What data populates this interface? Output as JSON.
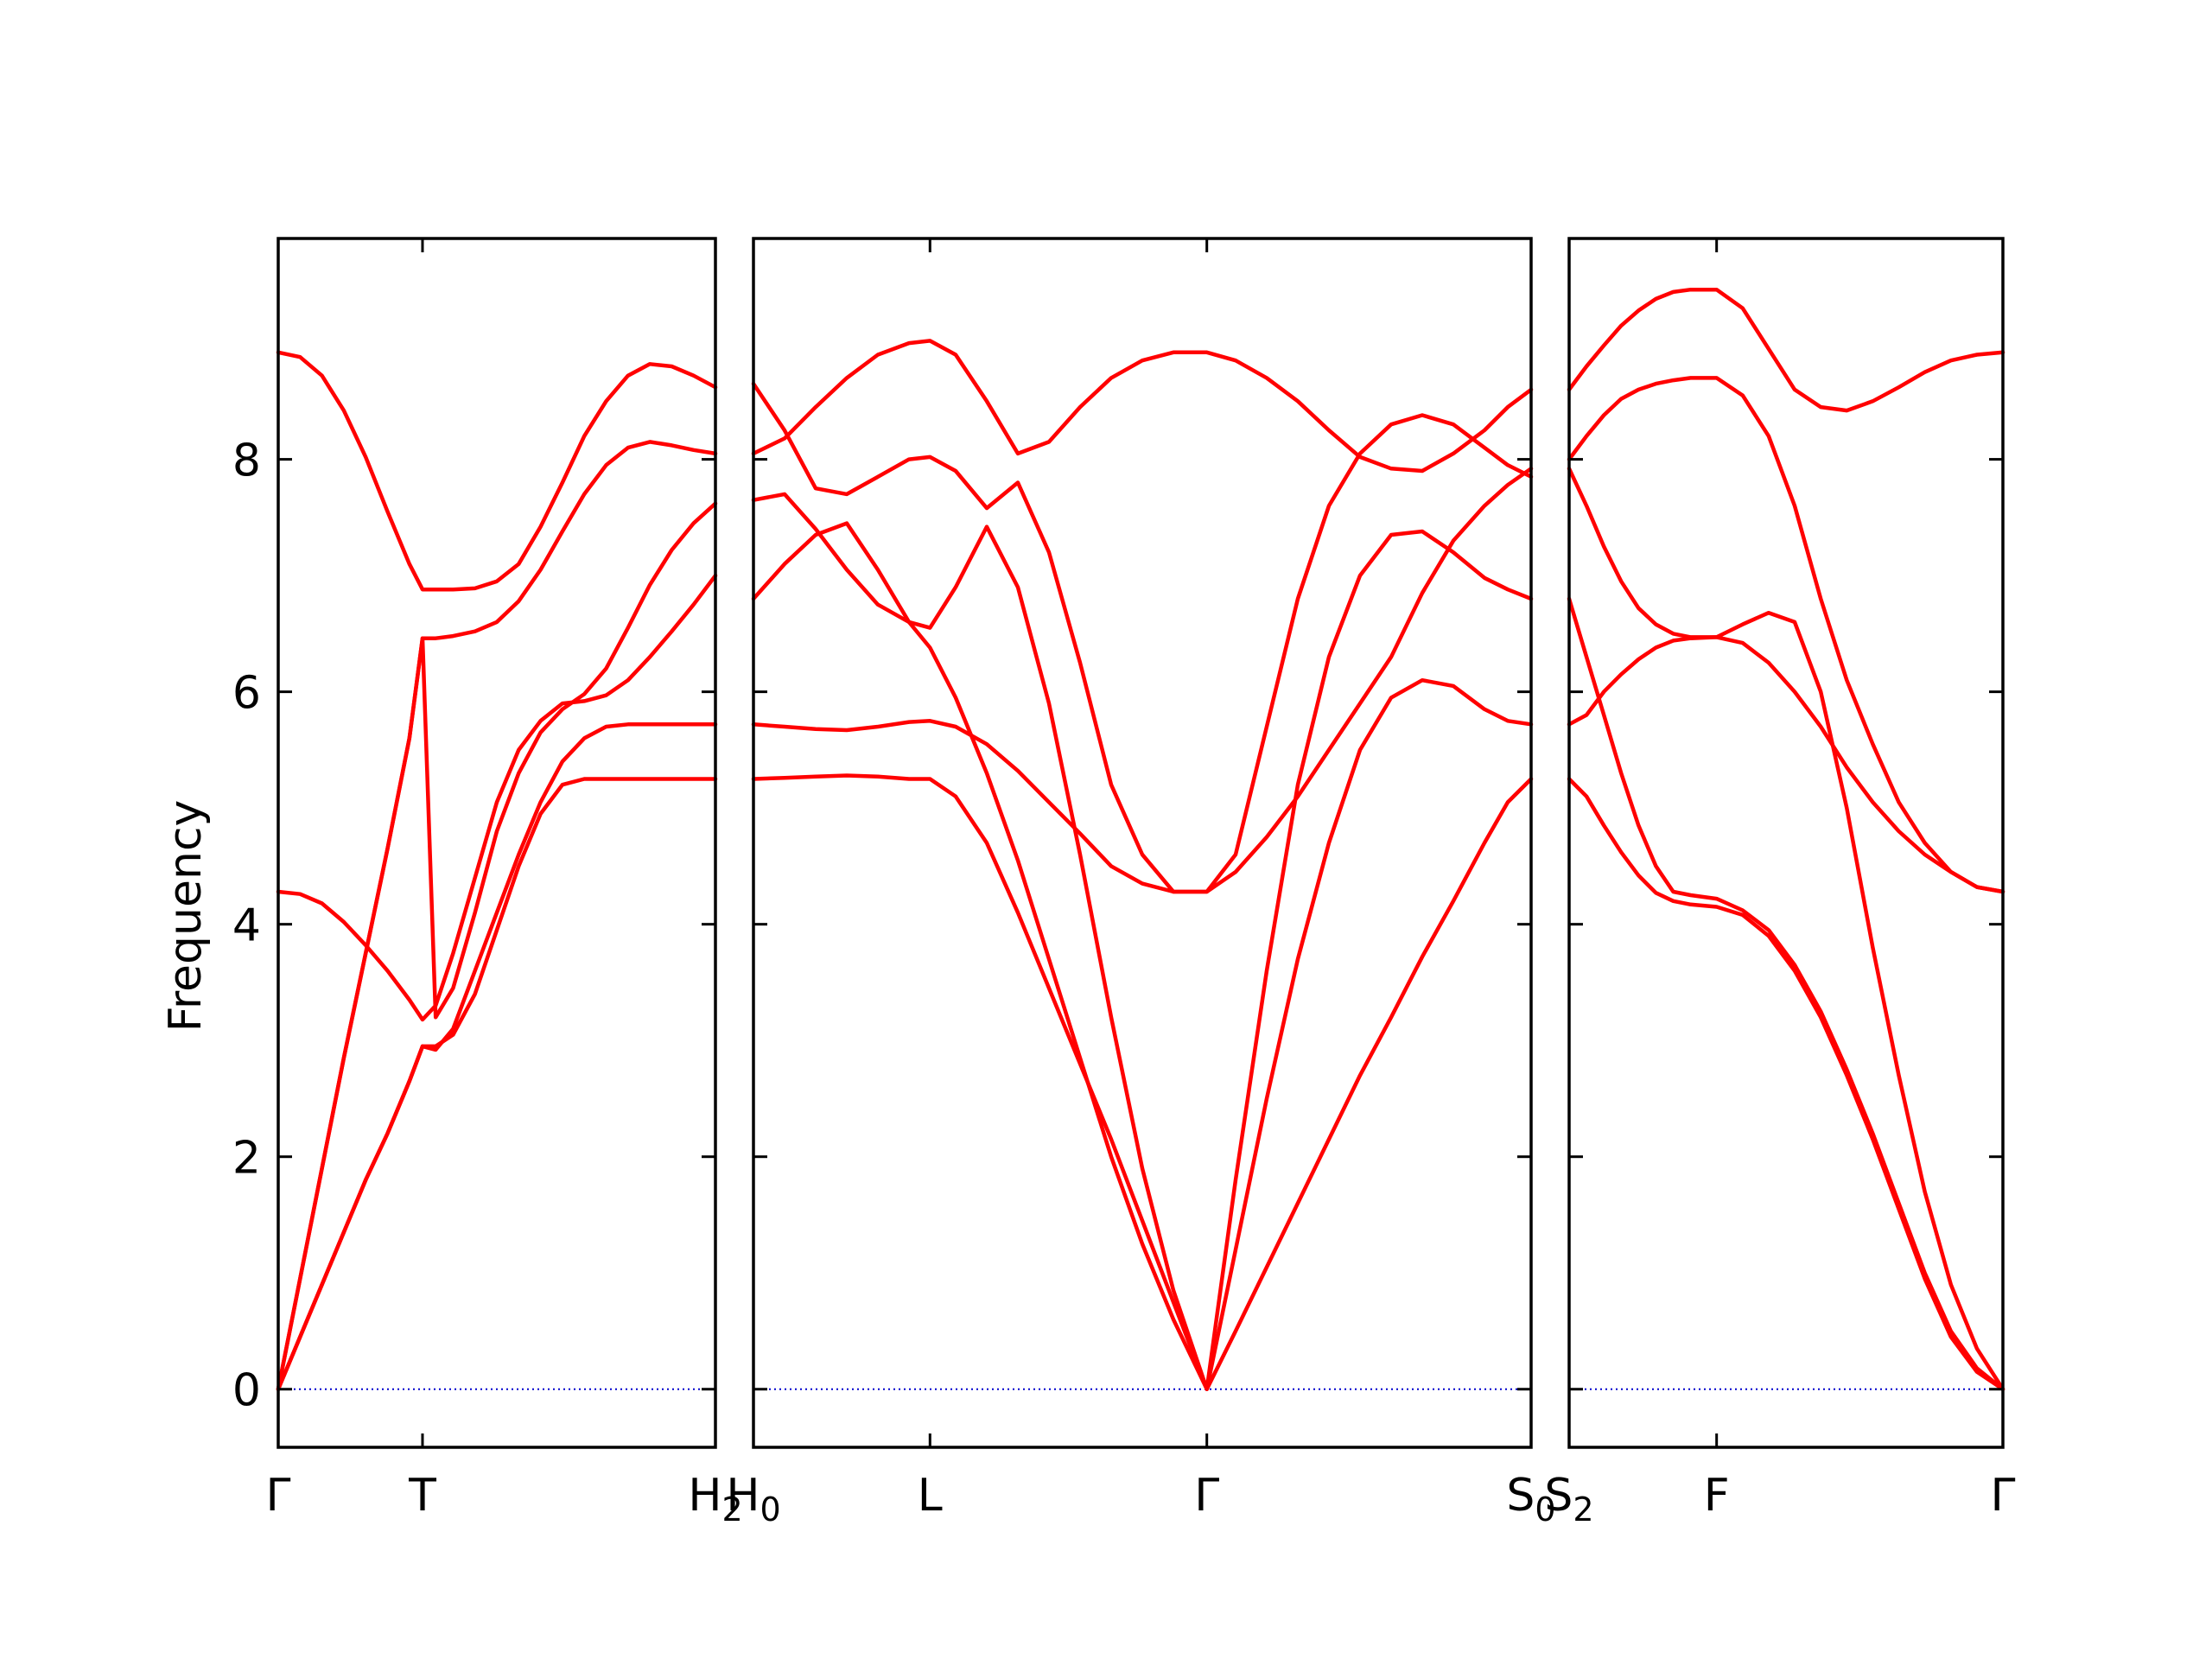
{
  "chart_data": {
    "type": "line",
    "title": "",
    "ylabel": "Frequency",
    "ylim": [
      -0.5,
      9.9
    ],
    "yticks": [
      0,
      2,
      4,
      6,
      8
    ],
    "colors": {
      "bands": "#ff0000",
      "zero_line": "#0000cc",
      "axes": "#000000"
    },
    "grid": false,
    "panels": [
      {
        "xlim": [
          0,
          1
        ],
        "ticks": [
          {
            "x": 0,
            "label": "Γ",
            "sub": ""
          },
          {
            "x": 0.33,
            "label": "T",
            "sub": ""
          },
          {
            "x": 1,
            "label": "H",
            "sub": "2"
          }
        ],
        "series": [
          {
            "x": [
              0,
              0.05,
              0.1,
              0.15,
              0.2,
              0.25,
              0.3,
              0.33,
              0.36,
              0.4,
              0.45,
              0.5,
              0.55,
              0.6,
              0.65,
              0.7,
              0.75,
              0.8,
              0.85,
              0.9,
              0.95,
              1
            ],
            "y": [
              0,
              0.45,
              0.9,
              1.35,
              1.8,
              2.2,
              2.65,
              2.95,
              2.95,
              3.05,
              3.4,
              3.95,
              4.5,
              4.95,
              5.2,
              5.25,
              5.25,
              5.25,
              5.25,
              5.25,
              5.25,
              5.25
            ]
          },
          {
            "x": [
              0,
              0.05,
              0.1,
              0.15,
              0.2,
              0.25,
              0.3,
              0.33,
              0.36,
              0.4,
              0.45,
              0.5,
              0.55,
              0.6,
              0.65,
              0.7,
              0.75,
              0.8,
              0.85,
              0.9,
              0.95,
              1
            ],
            "y": [
              0,
              0.45,
              0.9,
              1.35,
              1.8,
              2.2,
              2.65,
              2.95,
              2.92,
              3.1,
              3.6,
              4.1,
              4.6,
              5.05,
              5.4,
              5.6,
              5.7,
              5.72,
              5.72,
              5.72,
              5.72,
              5.72
            ]
          },
          {
            "x": [
              0,
              0.05,
              0.1,
              0.15,
              0.2,
              0.25,
              0.3,
              0.33,
              0.36,
              0.4,
              0.45,
              0.5,
              0.55,
              0.6,
              0.65,
              0.7,
              0.75,
              0.8,
              0.85,
              0.9,
              0.95,
              1
            ],
            "y": [
              4.28,
              4.26,
              4.18,
              4.02,
              3.82,
              3.6,
              3.35,
              3.18,
              3.3,
              3.75,
              4.4,
              5.05,
              5.5,
              5.75,
              5.9,
              5.92,
              5.97,
              6.1,
              6.3,
              6.52,
              6.75,
              7.0
            ]
          },
          {
            "x": [
              0,
              0.05,
              0.1,
              0.15,
              0.2,
              0.25,
              0.3,
              0.33,
              0.36,
              0.4,
              0.45,
              0.5,
              0.55,
              0.6,
              0.65,
              0.7,
              0.75,
              0.8,
              0.85,
              0.9,
              0.95,
              1
            ],
            "y": [
              0,
              0.95,
              1.9,
              2.85,
              3.75,
              4.65,
              5.6,
              6.46,
              6.46,
              6.48,
              6.52,
              6.6,
              6.78,
              7.05,
              7.38,
              7.7,
              7.95,
              8.1,
              8.15,
              8.12,
              8.08,
              8.05
            ]
          },
          {
            "x": [
              0,
              0.05,
              0.1,
              0.15,
              0.2,
              0.25,
              0.3,
              0.33,
              0.36,
              0.4,
              0.45,
              0.5,
              0.55,
              0.6,
              0.65,
              0.7,
              0.75,
              0.8,
              0.85,
              0.9,
              0.95,
              1
            ],
            "y": [
              8.92,
              8.88,
              8.72,
              8.42,
              8.02,
              7.55,
              7.1,
              6.88,
              6.88,
              6.88,
              6.89,
              6.95,
              7.1,
              7.42,
              7.8,
              8.2,
              8.5,
              8.72,
              8.82,
              8.8,
              8.72,
              8.62
            ]
          },
          {
            "x": [
              0,
              0.05,
              0.1,
              0.15,
              0.2,
              0.25,
              0.3,
              0.33,
              0.36,
              0.4,
              0.45,
              0.5,
              0.55,
              0.6,
              0.65,
              0.7,
              0.75,
              0.8,
              0.85,
              0.9,
              0.95,
              1
            ],
            "y": [
              0,
              0.95,
              1.9,
              2.85,
              3.75,
              4.65,
              5.6,
              6.46,
              3.2,
              3.45,
              4.1,
              4.8,
              5.3,
              5.65,
              5.85,
              5.98,
              6.2,
              6.55,
              6.92,
              7.22,
              7.45,
              7.62
            ]
          }
        ]
      },
      {
        "xlim": [
          0,
          1
        ],
        "ticks": [
          {
            "x": 0,
            "label": "H",
            "sub": "0"
          },
          {
            "x": 0.227,
            "label": "L",
            "sub": ""
          },
          {
            "x": 0.583,
            "label": "Γ",
            "sub": ""
          },
          {
            "x": 1,
            "label": "S",
            "sub": "0"
          }
        ],
        "series": [
          {
            "x": [
              0,
              0.04,
              0.08,
              0.12,
              0.16,
              0.2,
              0.227,
              0.26,
              0.3,
              0.34,
              0.38,
              0.42,
              0.46,
              0.5,
              0.54,
              0.583,
              0.62,
              0.66,
              0.7,
              0.74,
              0.78,
              0.82,
              0.86,
              0.9,
              0.94,
              0.97,
              1
            ],
            "y": [
              5.25,
              5.26,
              5.27,
              5.28,
              5.27,
              5.25,
              5.25,
              5.1,
              4.7,
              4.1,
              3.45,
              2.8,
              2.15,
              1.45,
              0.75,
              0,
              0.5,
              1.05,
              1.6,
              2.15,
              2.7,
              3.2,
              3.72,
              4.2,
              4.7,
              5.05,
              5.25
            ]
          },
          {
            "x": [
              0,
              0.04,
              0.08,
              0.12,
              0.16,
              0.2,
              0.227,
              0.26,
              0.3,
              0.34,
              0.38,
              0.42,
              0.46,
              0.5,
              0.54,
              0.583,
              0.62,
              0.66,
              0.7,
              0.74,
              0.78,
              0.82,
              0.86,
              0.9,
              0.94,
              0.97,
              1
            ],
            "y": [
              5.72,
              5.7,
              5.68,
              5.67,
              5.7,
              5.74,
              5.75,
              5.7,
              5.55,
              5.32,
              5.05,
              4.78,
              4.5,
              4.35,
              4.28,
              4.28,
              4.45,
              4.75,
              5.1,
              5.5,
              5.9,
              6.3,
              6.85,
              7.3,
              7.6,
              7.78,
              7.92
            ]
          },
          {
            "x": [
              0,
              0.04,
              0.08,
              0.12,
              0.16,
              0.2,
              0.227,
              0.26,
              0.3,
              0.34,
              0.38,
              0.42,
              0.46,
              0.5,
              0.54,
              0.583,
              0.62,
              0.66,
              0.7,
              0.74,
              0.78,
              0.82,
              0.86,
              0.9,
              0.94,
              0.97,
              1
            ],
            "y": [
              6.8,
              7.1,
              7.35,
              7.45,
              7.05,
              6.6,
              6.38,
              5.95,
              5.3,
              4.55,
              3.7,
              2.85,
              2.0,
              1.25,
              0.6,
              0,
              1.2,
              2.5,
              3.7,
              4.7,
              5.5,
              5.95,
              6.1,
              6.05,
              5.85,
              5.75,
              5.72
            ]
          },
          {
            "x": [
              0,
              0.04,
              0.08,
              0.12,
              0.16,
              0.2,
              0.227,
              0.26,
              0.3,
              0.34,
              0.38,
              0.42,
              0.46,
              0.5,
              0.54,
              0.583,
              0.62,
              0.66,
              0.7,
              0.74,
              0.78,
              0.82,
              0.86,
              0.9,
              0.94,
              0.97,
              1
            ],
            "y": [
              7.65,
              7.7,
              7.4,
              7.05,
              6.75,
              6.6,
              6.55,
              6.9,
              7.42,
              6.9,
              5.9,
              4.6,
              3.2,
              1.9,
              0.85,
              0,
              1.8,
              3.6,
              5.2,
              6.3,
              7.0,
              7.35,
              7.38,
              7.2,
              6.98,
              6.88,
              6.8
            ]
          },
          {
            "x": [
              0,
              0.04,
              0.08,
              0.12,
              0.16,
              0.2,
              0.227,
              0.26,
              0.3,
              0.34,
              0.38,
              0.42,
              0.46,
              0.5,
              0.54,
              0.583,
              0.62,
              0.66,
              0.7,
              0.74,
              0.78,
              0.82,
              0.86,
              0.9,
              0.94,
              0.97,
              1
            ],
            "y": [
              8.65,
              8.25,
              7.75,
              7.7,
              7.85,
              8.0,
              8.02,
              7.9,
              7.58,
              7.8,
              7.2,
              6.25,
              5.2,
              4.6,
              4.28,
              4.28,
              4.6,
              5.7,
              6.8,
              7.6,
              8.05,
              8.3,
              8.38,
              8.3,
              8.1,
              7.95,
              7.85
            ]
          },
          {
            "x": [
              0,
              0.04,
              0.08,
              0.12,
              0.16,
              0.2,
              0.227,
              0.26,
              0.3,
              0.34,
              0.38,
              0.42,
              0.46,
              0.5,
              0.54,
              0.583,
              0.62,
              0.66,
              0.7,
              0.74,
              0.78,
              0.82,
              0.86,
              0.9,
              0.94,
              0.97,
              1
            ],
            "y": [
              8.05,
              8.18,
              8.45,
              8.7,
              8.9,
              9.0,
              9.02,
              8.9,
              8.5,
              8.05,
              8.15,
              8.45,
              8.7,
              8.85,
              8.92,
              8.92,
              8.85,
              8.7,
              8.5,
              8.25,
              8.02,
              7.92,
              7.9,
              8.05,
              8.25,
              8.45,
              8.6
            ]
          }
        ]
      },
      {
        "xlim": [
          0,
          1
        ],
        "ticks": [
          {
            "x": 0,
            "label": "S",
            "sub": "2"
          },
          {
            "x": 0.34,
            "label": "F",
            "sub": ""
          },
          {
            "x": 1,
            "label": "Γ",
            "sub": ""
          }
        ],
        "series": [
          {
            "x": [
              0,
              0.04,
              0.08,
              0.12,
              0.16,
              0.2,
              0.24,
              0.28,
              0.34,
              0.4,
              0.46,
              0.52,
              0.58,
              0.64,
              0.7,
              0.76,
              0.82,
              0.88,
              0.94,
              1
            ],
            "y": [
              5.25,
              5.1,
              4.85,
              4.62,
              4.42,
              4.27,
              4.2,
              4.17,
              4.15,
              4.08,
              3.9,
              3.6,
              3.2,
              2.7,
              2.15,
              1.55,
              0.95,
              0.45,
              0.15,
              0
            ]
          },
          {
            "x": [
              0,
              0.04,
              0.08,
              0.12,
              0.16,
              0.2,
              0.24,
              0.28,
              0.34,
              0.4,
              0.46,
              0.52,
              0.58,
              0.64,
              0.7,
              0.76,
              0.82,
              0.88,
              0.94,
              1
            ],
            "y": [
              6.8,
              6.3,
              5.8,
              5.3,
              4.85,
              4.5,
              4.28,
              4.25,
              4.22,
              4.12,
              3.95,
              3.65,
              3.25,
              2.75,
              2.2,
              1.6,
              1.0,
              0.5,
              0.18,
              0
            ]
          },
          {
            "x": [
              0,
              0.04,
              0.08,
              0.12,
              0.16,
              0.2,
              0.24,
              0.28,
              0.34,
              0.4,
              0.46,
              0.52,
              0.58,
              0.64,
              0.7,
              0.76,
              0.82,
              0.88,
              0.94,
              1
            ],
            "y": [
              5.72,
              5.8,
              6.0,
              6.15,
              6.28,
              6.38,
              6.44,
              6.46,
              6.47,
              6.42,
              6.25,
              6.0,
              5.7,
              5.35,
              5.05,
              4.8,
              4.6,
              4.45,
              4.32,
              4.28
            ]
          },
          {
            "x": [
              0,
              0.04,
              0.08,
              0.12,
              0.16,
              0.2,
              0.24,
              0.28,
              0.34,
              0.4,
              0.46,
              0.52,
              0.58,
              0.64,
              0.7,
              0.76,
              0.82,
              0.88,
              0.94,
              1
            ],
            "y": [
              7.92,
              7.6,
              7.25,
              6.95,
              6.72,
              6.58,
              6.5,
              6.47,
              6.47,
              6.58,
              6.68,
              6.6,
              6.0,
              5.0,
              3.8,
              2.7,
              1.7,
              0.9,
              0.35,
              0
            ]
          },
          {
            "x": [
              0,
              0.04,
              0.08,
              0.12,
              0.16,
              0.2,
              0.24,
              0.28,
              0.34,
              0.4,
              0.46,
              0.52,
              0.58,
              0.64,
              0.7,
              0.76,
              0.82,
              0.88,
              0.94,
              1
            ],
            "y": [
              8.0,
              8.2,
              8.38,
              8.52,
              8.6,
              8.65,
              8.68,
              8.7,
              8.7,
              8.55,
              8.2,
              7.6,
              6.8,
              6.1,
              5.55,
              5.05,
              4.7,
              4.45,
              4.32,
              4.28
            ]
          },
          {
            "x": [
              0,
              0.04,
              0.08,
              0.12,
              0.16,
              0.2,
              0.24,
              0.28,
              0.34,
              0.4,
              0.46,
              0.52,
              0.58,
              0.64,
              0.7,
              0.76,
              0.82,
              0.88,
              0.94,
              1
            ],
            "y": [
              8.6,
              8.8,
              8.98,
              9.15,
              9.28,
              9.38,
              9.44,
              9.46,
              9.46,
              9.3,
              8.95,
              8.6,
              8.45,
              8.42,
              8.5,
              8.62,
              8.75,
              8.85,
              8.9,
              8.92
            ]
          }
        ]
      }
    ]
  }
}
